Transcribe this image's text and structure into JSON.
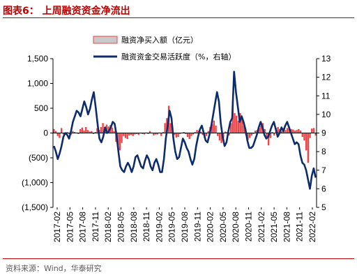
{
  "header": {
    "title": "图表6：  上周融资资金净流出"
  },
  "footer": {
    "source": "资料来源：Wind，华泰研究"
  },
  "colors": {
    "bar": "#e8474b",
    "bar_legend_fill": "#c9c9c9",
    "line": "#0d2c6c",
    "accent": "#c00000"
  },
  "chart_data": {
    "type": "bar+line",
    "xlabel": "",
    "ylabel": "",
    "legend": {
      "placement": "top-center"
    },
    "grid": false,
    "left_axis": {
      "ylim": [
        -1500,
        1500
      ],
      "ticks": [
        1500,
        1000,
        500,
        0,
        -500,
        -1000,
        -1500
      ],
      "tick_labels": [
        "1,500",
        "1,000",
        "500",
        "0",
        "(500)",
        "(1,000)",
        "(1,500)"
      ]
    },
    "right_axis": {
      "ylim": [
        5,
        13
      ],
      "ticks": [
        13,
        12,
        11,
        10,
        9,
        8,
        7,
        6,
        5
      ],
      "tick_labels": [
        "13",
        "12",
        "11",
        "10",
        "9",
        "8",
        "7",
        "6",
        "5"
      ]
    },
    "x_tick_labels": [
      "2017-02",
      "2017-05",
      "2017-08",
      "2017-11",
      "2018-02",
      "2018-05",
      "2018-08",
      "2018-11",
      "2019-02",
      "2019-05",
      "2019-08",
      "2019-11",
      "2020-02",
      "2020-05",
      "2020-08",
      "2020-11",
      "2021-02",
      "2021-05",
      "2021-08",
      "2021-11",
      "2022-02"
    ],
    "series": [
      {
        "name": "融资净买入额（亿元）",
        "axis": "left",
        "kind": "bar",
        "values": [
          80,
          40,
          -60,
          -100,
          100,
          -30,
          -10,
          20,
          -20,
          -40,
          40,
          20,
          10,
          -20,
          80,
          110,
          50,
          120,
          60,
          30,
          40,
          -20,
          20,
          100,
          60,
          120,
          200,
          120,
          170,
          130,
          160,
          110,
          40,
          -180,
          -250,
          -350,
          -200,
          -60,
          -100,
          -120,
          -50,
          -40,
          -60,
          -30,
          -20,
          -40,
          -10,
          -20,
          -30,
          10,
          -20,
          40,
          -10,
          -50,
          -30,
          -30,
          10,
          -60,
          20,
          200,
          300,
          550,
          200,
          100,
          -40,
          -90,
          -80,
          -20,
          10,
          20,
          -20,
          -80,
          -120,
          -60,
          -30,
          20,
          60,
          40,
          30,
          -40,
          -100,
          -60,
          40,
          120,
          180,
          250,
          150,
          -60,
          -150,
          -200,
          -100,
          30,
          20,
          -50,
          200,
          650,
          400,
          350,
          250,
          400,
          300,
          150,
          -40,
          -140,
          -100,
          -50,
          -20,
          50,
          60,
          100,
          150,
          200,
          80,
          -100,
          -250,
          -100,
          20,
          -50,
          100,
          120,
          80,
          40,
          100,
          60,
          100,
          130,
          80,
          70,
          50,
          60,
          80,
          50,
          -80,
          -150,
          -350,
          -600,
          -100,
          90,
          100,
          -50
        ]
      },
      {
        "name": "融资资金交易活跃度（%，右轴）",
        "axis": "right",
        "kind": "line",
        "values": [
          8.3,
          8.0,
          7.6,
          7.9,
          8.3,
          8.8,
          9.0,
          8.9,
          8.7,
          9.1,
          9.6,
          9.9,
          10.2,
          10.1,
          9.9,
          10.3,
          10.7,
          10.4,
          10.0,
          10.3,
          10.8,
          11.2,
          10.4,
          9.5,
          8.7,
          8.5,
          8.8,
          9.3,
          9.0,
          9.1,
          9.3,
          9.6,
          9.5,
          8.9,
          8.0,
          7.2,
          7.0,
          6.9,
          7.2,
          7.4,
          7.2,
          6.9,
          7.2,
          7.7,
          7.8,
          7.5,
          7.2,
          7.1,
          7.5,
          7.8,
          7.6,
          7.2,
          7.0,
          7.4,
          7.6,
          7.3,
          6.9,
          6.9,
          7.6,
          8.7,
          9.4,
          10.2,
          9.8,
          8.7,
          8.0,
          7.6,
          7.7,
          8.2,
          8.7,
          8.5,
          8.2,
          8.0,
          7.6,
          7.3,
          7.6,
          8.3,
          8.8,
          9.2,
          9.4,
          9.0,
          8.6,
          8.5,
          8.9,
          9.4,
          10.0,
          10.6,
          11.2,
          10.7,
          9.5,
          8.8,
          8.3,
          8.5,
          9.1,
          9.6,
          9.8,
          12.3,
          11.2,
          10.4,
          9.6,
          9.9,
          9.6,
          9.2,
          8.6,
          8.2,
          8.2,
          8.3,
          8.6,
          8.9,
          9.3,
          9.6,
          9.3,
          8.9,
          8.7,
          8.8,
          9.1,
          9.4,
          9.6,
          9.2,
          8.8,
          9.0,
          9.3,
          9.1,
          9.4,
          9.6,
          9.3,
          9.0,
          8.7,
          8.4,
          8.5,
          8.4,
          7.8,
          7.4,
          7.3,
          7.0,
          6.5,
          6.0,
          6.7,
          7.1,
          6.6
        ]
      }
    ]
  }
}
